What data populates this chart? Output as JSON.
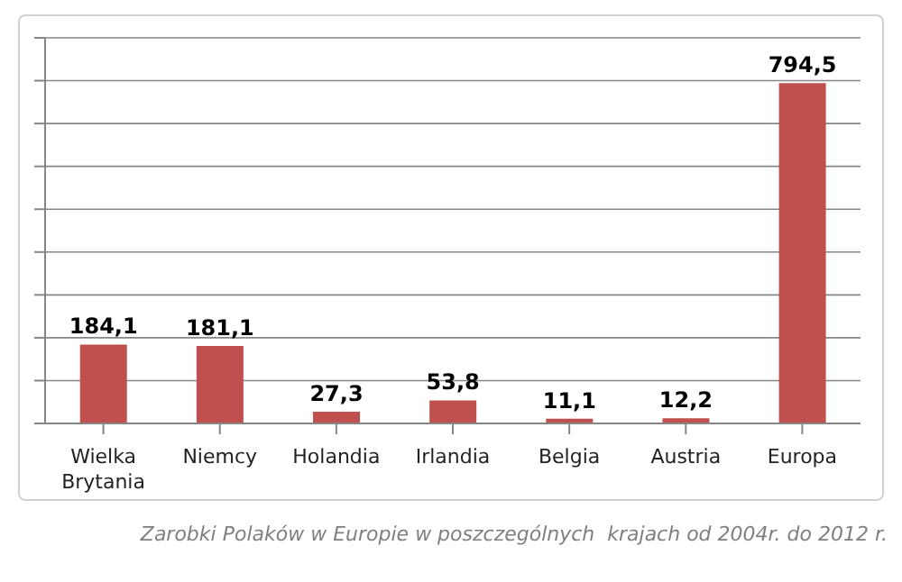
{
  "chart_data": {
    "type": "bar",
    "categories": [
      "Wielka Brytania",
      "Niemcy",
      "Holandia",
      "Irlandia",
      "Belgia",
      "Austria",
      "Europa"
    ],
    "values": [
      184.1,
      181.1,
      27.3,
      53.8,
      11.1,
      12.2,
      794.5
    ],
    "value_labels": [
      "184,1",
      "181,1",
      "27,3",
      "53,8",
      "11,1",
      "12,2",
      "794,5"
    ],
    "color": "#c0504d",
    "ylim": [
      0,
      900
    ],
    "tick_labels": "x",
    "grid": "y",
    "annotations": [
      "Zarobki Polaków w Europie w poszczególnych  krajach od 2004r. do 2012 r."
    ]
  }
}
